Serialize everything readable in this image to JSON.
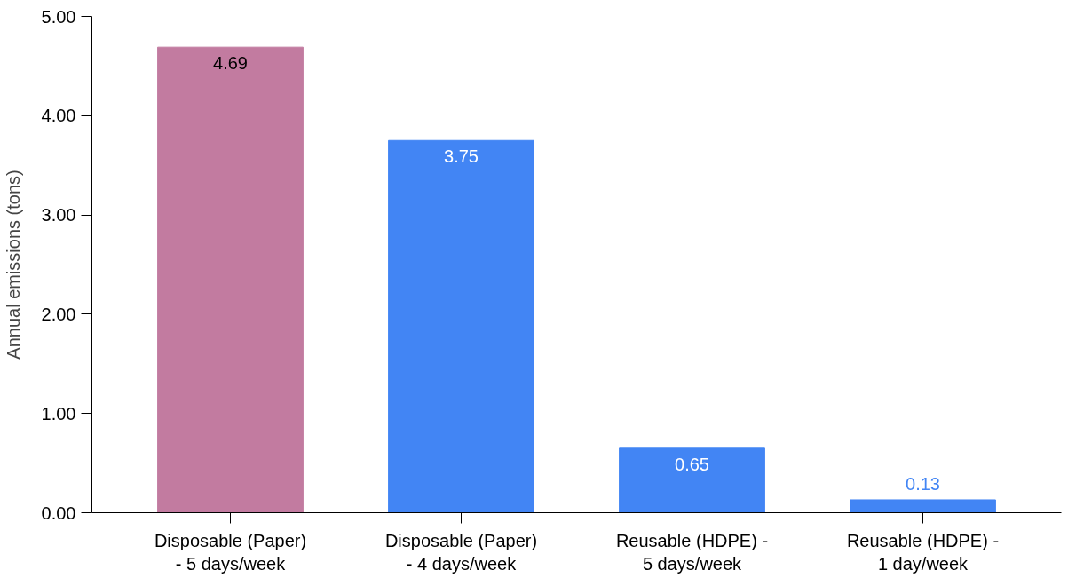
{
  "chart_data": {
    "type": "bar",
    "ylabel": "Annual emissions (tons)",
    "categories": [
      "Disposable (Paper)\n- 5 days/week",
      "Disposable (Paper)\n- 4 days/week",
      "Reusable (HDPE) -\n5 days/week",
      "Reusable (HDPE) -\n1 day/week"
    ],
    "values": [
      4.69,
      3.75,
      0.65,
      0.13
    ],
    "colors": [
      "#c27ba0",
      "#4285f4",
      "#4285f4",
      "#4285f4"
    ],
    "ylim": [
      0,
      5
    ],
    "yticks": [
      {
        "value": 0,
        "label": "0.00"
      },
      {
        "value": 1,
        "label": "1.00"
      },
      {
        "value": 2,
        "label": "2.00"
      },
      {
        "value": 3,
        "label": "3.00"
      },
      {
        "value": 4,
        "label": "4.00"
      },
      {
        "value": 5,
        "label": "5.00"
      }
    ],
    "data_labels": true,
    "grid": false
  }
}
